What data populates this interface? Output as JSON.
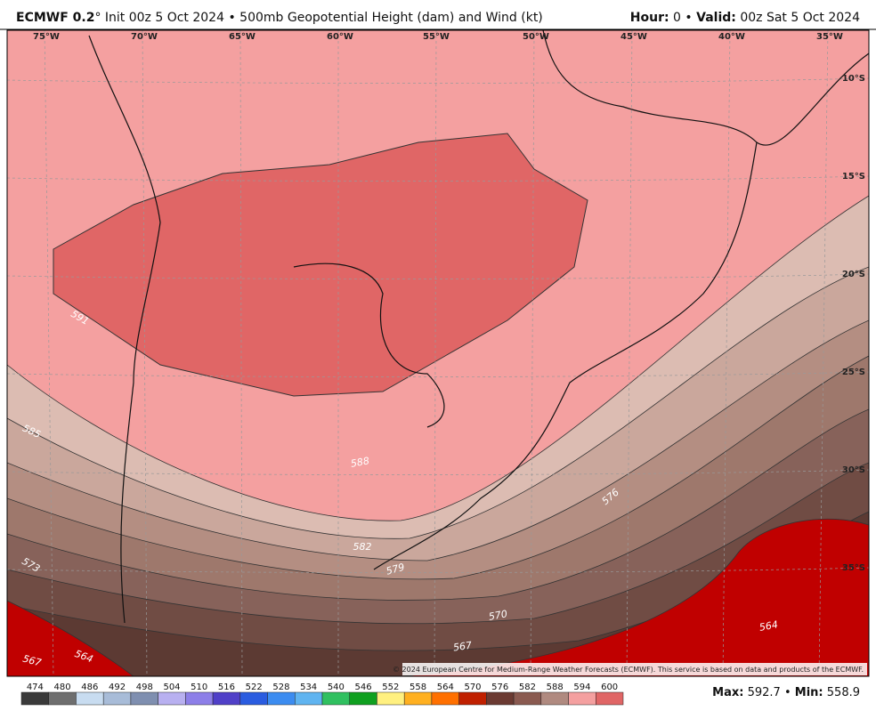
{
  "header": {
    "model": "ECMWF 0.2",
    "degree": "°",
    "init": "Init 00z 5 Oct 2024",
    "bullet": "•",
    "product": "500mb Geopotential Height (dam) and Wind (kt)",
    "hour_label": "Hour:",
    "hour": "0",
    "valid_label": "Valid:",
    "valid": "00z Sat 5 Oct 2024"
  },
  "map": {
    "lon_labels": [
      "75°W",
      "70°W",
      "65°W",
      "60°W",
      "55°W",
      "50°W",
      "45°W",
      "40°W",
      "35°W"
    ],
    "lat_labels": [
      "10°S",
      "15°S",
      "20°S",
      "25°S",
      "30°S",
      "35°S"
    ],
    "contour_labels": [
      "591",
      "585",
      "588",
      "576",
      "573",
      "570",
      "567",
      "564",
      "564",
      "567",
      "579",
      "582"
    ],
    "copyright": "© 2024 European Centre for Medium-Range Weather Forecasts (ECMWF). This service is based on data and products of the ECMWF."
  },
  "colorbar": {
    "labels": [
      "474",
      "480",
      "486",
      "492",
      "498",
      "504",
      "510",
      "516",
      "522",
      "528",
      "534",
      "540",
      "546",
      "552",
      "558",
      "564",
      "570",
      "576",
      "582",
      "588",
      "594",
      "600"
    ],
    "colors": [
      "#3a3a3a",
      "#6e6e6e",
      "#c8dcf0",
      "#a8bcd8",
      "#7f8fb0",
      "#b8b0f0",
      "#8d7fe8",
      "#5040c8",
      "#2a5ce0",
      "#3c8cf0",
      "#60b4f0",
      "#30c060",
      "#10a020",
      "#fff080",
      "#ffb020",
      "#ff7000",
      "#c02000",
      "#6b3a32",
      "#8a5a50",
      "#b08a80",
      "#f4a0a0",
      "#e06666"
    ]
  },
  "footer": {
    "max_label": "Max:",
    "max": "592.7",
    "bullet": "•",
    "min_label": "Min:",
    "min": "558.9"
  }
}
